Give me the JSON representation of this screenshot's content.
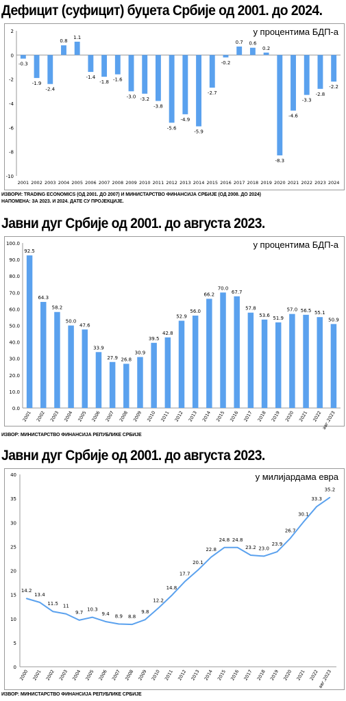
{
  "chart_data": [
    {
      "type": "bar",
      "title": "Дефицит (суфицит) буџета Србије од 2001. до 2024.",
      "subtitle": "у процентима БДП-а",
      "categories": [
        "2001",
        "2002",
        "2003",
        "2004",
        "2005",
        "2006",
        "2007",
        "2008",
        "2009",
        "2010",
        "2011",
        "2012",
        "2013",
        "2014",
        "2015",
        "2016",
        "2017",
        "2018",
        "2019",
        "2020",
        "2021",
        "2022",
        "2023",
        "2024"
      ],
      "values": [
        -0.3,
        -1.9,
        -2.4,
        0.8,
        1.1,
        -1.4,
        -1.8,
        -1.6,
        -3.0,
        -3.2,
        -3.8,
        -5.6,
        -4.9,
        -5.9,
        -2.7,
        -0.2,
        0.7,
        0.6,
        0.2,
        -8.3,
        -4.6,
        -3.3,
        -2.8,
        -2.2
      ],
      "value_labels": [
        "-0.3",
        "-1.9",
        "-2.4",
        "0.8",
        "1.1",
        "-1.4",
        "-1.8",
        "-1.6",
        "-3.0",
        "-3.2",
        "-3.8",
        "-5.6",
        "-4.9",
        "-5.9",
        "-2.7",
        "-0.2",
        "0.7",
        "0.6",
        "0.2",
        "-8.3",
        "-4.6",
        "-3.3",
        "-2.8",
        "-2.2"
      ],
      "ylim": [
        -10,
        2
      ],
      "yticks": [
        2,
        0,
        -2,
        -4,
        -6,
        -8,
        -10
      ],
      "grid": false,
      "color": "#5aa1ee",
      "source": "ИЗВОРИ: TRADING ECONOMICS (ОД 2001. ДО 2007) И МИНИСТАРСТВО ФИНАНСИЈА СРБИЈЕ (ОД 2008. ДО 2024)",
      "note": "НАПОМЕНА: ЗА 2023. И 2024. ДАТЕ СУ ПРОЈЕКЦИЈЕ."
    },
    {
      "type": "bar",
      "title": "Јавни дуг Србије од 2001. до августа 2023.",
      "subtitle": "у процентима БДП-а",
      "categories": [
        "2001",
        "2002",
        "2003",
        "2004",
        "2005",
        "2006",
        "2007",
        "2008",
        "2009",
        "2010",
        "2011",
        "2012",
        "2013",
        "2014",
        "2015",
        "2016",
        "2017",
        "2018",
        "2019",
        "2020",
        "2021",
        "2022",
        "авг.2023"
      ],
      "values": [
        92.5,
        64.3,
        58.2,
        50.0,
        47.6,
        33.9,
        27.9,
        26.8,
        30.9,
        39.5,
        42.8,
        52.9,
        56.0,
        66.2,
        70.0,
        67.7,
        57.8,
        53.6,
        51.9,
        57.0,
        56.5,
        55.1,
        50.9
      ],
      "value_labels": [
        "92.5",
        "64.3",
        "58.2",
        "50.0",
        "47.6",
        "33.9",
        "27.9",
        "26.8",
        "30.9",
        "39.5",
        "42.8",
        "52.9",
        "56.0",
        "66.2",
        "70.0",
        "67.7",
        "57.8",
        "53.6",
        "51.9",
        "57.0",
        "56.5",
        "55.1",
        "50.9"
      ],
      "ylim": [
        0,
        100
      ],
      "yticks": [
        "100.0",
        "90.0",
        "80.0",
        "70.0",
        "60.0",
        "50.0",
        "40.0",
        "30.0",
        "20.0",
        "10.0",
        "0.0"
      ],
      "grid": false,
      "color": "#5aa1ee",
      "source": "ИЗВОР: МИНИСТАРСТВО ФИНАНСИЈА РЕПУБЛИКЕ СРБИЈЕ"
    },
    {
      "type": "line",
      "title": "Јавни дуг Србије од 2001. до августа 2023.",
      "subtitle": "у милијардама евра",
      "categories": [
        "2000",
        "2001",
        "2002",
        "2003",
        "2004",
        "2005",
        "2006",
        "2007",
        "2008",
        "2009",
        "2010",
        "2011",
        "2012",
        "2013",
        "2014",
        "2015",
        "2016",
        "2017",
        "2018",
        "2019",
        "2020",
        "2021",
        "2022",
        "авг.2023"
      ],
      "values": [
        14.2,
        13.4,
        11.5,
        11,
        9.7,
        10.3,
        9.4,
        8.9,
        8.8,
        9.8,
        12.2,
        14.8,
        17.7,
        20.1,
        22.8,
        24.8,
        24.8,
        23.2,
        23.0,
        23.9,
        26.7,
        30.1,
        33.3,
        35.2
      ],
      "value_labels": [
        "14.2",
        "13.4",
        "11.5",
        "11",
        "9.7",
        "10.3",
        "9.4",
        "8.9",
        "8.8",
        "9.8",
        "12.2",
        "14.8",
        "17.7",
        "20.1",
        "22.8",
        "24.8",
        "24.8",
        "23.2",
        "23.0",
        "23.9",
        "26.7",
        "30.1",
        "33.3",
        "35.2"
      ],
      "ylim": [
        0,
        40
      ],
      "yticks": [
        40,
        35,
        30,
        25,
        20,
        15,
        10,
        5,
        0
      ],
      "grid": false,
      "color": "#5aa1ee",
      "source": "ИЗВОР: МИНИСТАРСТВО ФИНАНСИЈА РЕПУБЛИКЕ СРБИЈЕ"
    }
  ]
}
